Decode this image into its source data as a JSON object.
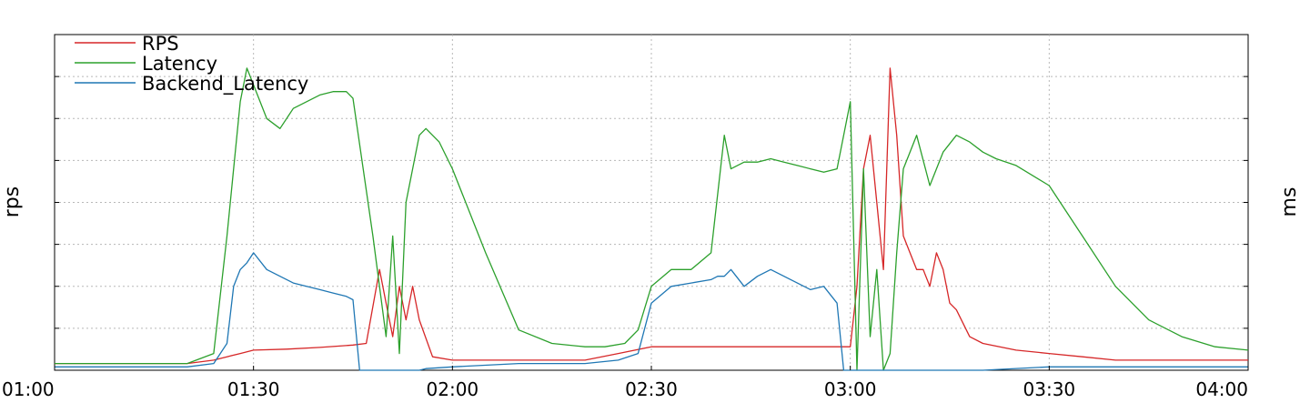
{
  "chart_data": {
    "type": "line",
    "title": "",
    "ylabel_left": "rps",
    "ylabel_right": "ms",
    "x_ticks": [
      "01:00",
      "01:30",
      "02:00",
      "02:30",
      "03:00",
      "03:30",
      "04:00"
    ],
    "xlim": [
      "01:00",
      "04:00"
    ],
    "ylim": [
      0,
      100
    ],
    "grid": true,
    "legend_position": "top-left",
    "series": [
      {
        "name": "RPS",
        "color": "#d62728",
        "x": [
          "01:00",
          "01:05",
          "01:10",
          "01:15",
          "01:20",
          "01:24",
          "01:26",
          "01:28",
          "01:30",
          "01:35",
          "01:40",
          "01:45",
          "01:47",
          "01:49",
          "01:50",
          "01:51",
          "01:52",
          "01:53",
          "01:54",
          "01:55",
          "01:57",
          "02:00",
          "02:10",
          "02:15",
          "02:20",
          "02:25",
          "02:30",
          "02:35",
          "02:40",
          "02:45",
          "02:50",
          "02:55",
          "03:00",
          "03:01",
          "03:02",
          "03:03",
          "03:04",
          "03:05",
          "03:06",
          "03:07",
          "03:08",
          "03:09",
          "03:10",
          "03:11",
          "03:12",
          "03:13",
          "03:14",
          "03:15",
          "03:16",
          "03:18",
          "03:20",
          "03:25",
          "03:30",
          "03:35",
          "03:40",
          "03:45",
          "03:50",
          "03:55",
          "04:00"
        ],
        "y": [
          2,
          2,
          2,
          2,
          2,
          3,
          4,
          5,
          6,
          6.3,
          6.8,
          7.5,
          8,
          30,
          20,
          10,
          25,
          15,
          25,
          15,
          4,
          3,
          3,
          3,
          3,
          5,
          7,
          7,
          7,
          7,
          7,
          7,
          7,
          25,
          60,
          70,
          50,
          30,
          90,
          70,
          40,
          35,
          30,
          30,
          25,
          35,
          30,
          20,
          18,
          10,
          8,
          6,
          5,
          4,
          3,
          3,
          3,
          3,
          3
        ]
      },
      {
        "name": "Latency",
        "color": "#2ca02c",
        "x": [
          "01:00",
          "01:10",
          "01:20",
          "01:24",
          "01:26",
          "01:28",
          "01:29",
          "01:30",
          "01:32",
          "01:34",
          "01:36",
          "01:38",
          "01:40",
          "01:42",
          "01:44",
          "01:45",
          "01:48",
          "01:50",
          "01:51",
          "01:52",
          "01:53",
          "01:54",
          "01:55",
          "01:56",
          "01:58",
          "02:00",
          "02:05",
          "02:10",
          "02:15",
          "02:20",
          "02:23",
          "02:26",
          "02:28",
          "02:30",
          "02:33",
          "02:36",
          "02:39",
          "02:41",
          "02:42",
          "02:44",
          "02:46",
          "02:48",
          "02:50",
          "02:52",
          "02:54",
          "02:56",
          "02:58",
          "03:00",
          "03:01",
          "03:02",
          "03:03",
          "03:04",
          "03:05",
          "03:06",
          "03:07",
          "03:08",
          "03:09",
          "03:10",
          "03:12",
          "03:14",
          "03:16",
          "03:18",
          "03:20",
          "03:22",
          "03:25",
          "03:30",
          "03:35",
          "03:40",
          "03:45",
          "03:50",
          "03:55",
          "04:00"
        ],
        "y": [
          2,
          2,
          2,
          5,
          40,
          80,
          90,
          85,
          75,
          72,
          78,
          80,
          82,
          83,
          83,
          81,
          40,
          10,
          40,
          5,
          50,
          60,
          70,
          72,
          68,
          60,
          35,
          12,
          8,
          7,
          7,
          8,
          12,
          25,
          30,
          30,
          35,
          70,
          60,
          62,
          62,
          63,
          62,
          61,
          60,
          59,
          60,
          80,
          0,
          60,
          10,
          30,
          0,
          5,
          35,
          60,
          65,
          70,
          55,
          65,
          70,
          68,
          65,
          63,
          61,
          55,
          40,
          25,
          15,
          10,
          7,
          6
        ]
      },
      {
        "name": "Backend_Latency",
        "color": "#1f77b4",
        "x": [
          "01:00",
          "01:10",
          "01:20",
          "01:24",
          "01:26",
          "01:27",
          "01:28",
          "01:29",
          "01:30",
          "01:32",
          "01:34",
          "01:36",
          "01:38",
          "01:40",
          "01:42",
          "01:44",
          "01:45",
          "01:46",
          "01:47",
          "01:50",
          "01:55",
          "01:56",
          "02:00",
          "02:10",
          "02:20",
          "02:25",
          "02:28",
          "02:30",
          "02:33",
          "02:36",
          "02:39",
          "02:40",
          "02:41",
          "02:42",
          "02:44",
          "02:46",
          "02:48",
          "02:50",
          "02:52",
          "02:54",
          "02:56",
          "02:58",
          "02:59",
          "03:00",
          "03:05",
          "03:20",
          "03:30",
          "04:00"
        ],
        "y": [
          1,
          1,
          1,
          2,
          8,
          25,
          30,
          32,
          35,
          30,
          28,
          26,
          25,
          24,
          23,
          22,
          21,
          0,
          0,
          0,
          0,
          0.5,
          1,
          2,
          2,
          3,
          5,
          20,
          25,
          26,
          27,
          28,
          28,
          30,
          25,
          28,
          30,
          28,
          26,
          24,
          25,
          20,
          0,
          0,
          0,
          0,
          1,
          1
        ]
      }
    ]
  },
  "footer_text": ""
}
